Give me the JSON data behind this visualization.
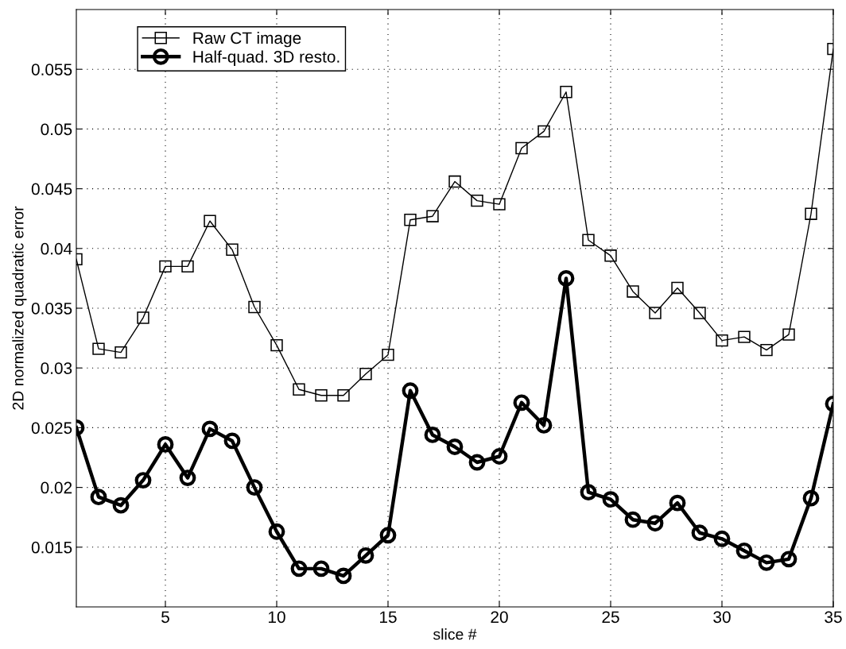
{
  "chart_data": {
    "type": "line",
    "xlabel": "slice #",
    "ylabel": "2D normalized quadratic error",
    "x": [
      1,
      2,
      3,
      4,
      5,
      6,
      7,
      8,
      9,
      10,
      11,
      12,
      13,
      14,
      15,
      16,
      17,
      18,
      19,
      20,
      21,
      22,
      23,
      24,
      25,
      26,
      27,
      28,
      29,
      30,
      31,
      32,
      33,
      34,
      35
    ],
    "series": [
      {
        "name": "Raw CT image",
        "color": "#000000",
        "marker": "square",
        "line_style": "solid",
        "values": [
          0.0391,
          0.0316,
          0.0313,
          0.0342,
          0.0385,
          0.0385,
          0.0423,
          0.0399,
          0.0351,
          0.0319,
          0.0282,
          0.0277,
          0.0277,
          0.0295,
          0.0311,
          0.0424,
          0.0427,
          0.0456,
          0.044,
          0.0437,
          0.0484,
          0.0498,
          0.0531,
          0.0407,
          0.0394,
          0.0364,
          0.0346,
          0.0367,
          0.0346,
          0.0323,
          0.0326,
          0.0315,
          0.0328,
          0.0429,
          0.0567
        ]
      },
      {
        "name": "Half-quad. 3D resto.",
        "color": "#000000",
        "marker": "circle",
        "line_style": "solid",
        "values": [
          0.025,
          0.0192,
          0.0185,
          0.0206,
          0.0236,
          0.0208,
          0.0249,
          0.0239,
          0.02,
          0.0163,
          0.0132,
          0.0132,
          0.0126,
          0.0143,
          0.016,
          0.0281,
          0.0244,
          0.0234,
          0.0221,
          0.0226,
          0.0271,
          0.0252,
          0.0375,
          0.0196,
          0.019,
          0.0173,
          0.017,
          0.0187,
          0.0162,
          0.0157,
          0.0147,
          0.0137,
          0.014,
          0.0191,
          0.027
        ]
      }
    ],
    "xlim": [
      1,
      35
    ],
    "xticks": [
      5,
      10,
      15,
      20,
      25,
      30,
      35
    ],
    "ylim": [
      0.01,
      0.06
    ],
    "yticks": [
      0.015,
      0.02,
      0.025,
      0.03,
      0.035,
      0.04,
      0.045,
      0.05,
      0.055
    ],
    "grid": true,
    "legend": "top left"
  }
}
